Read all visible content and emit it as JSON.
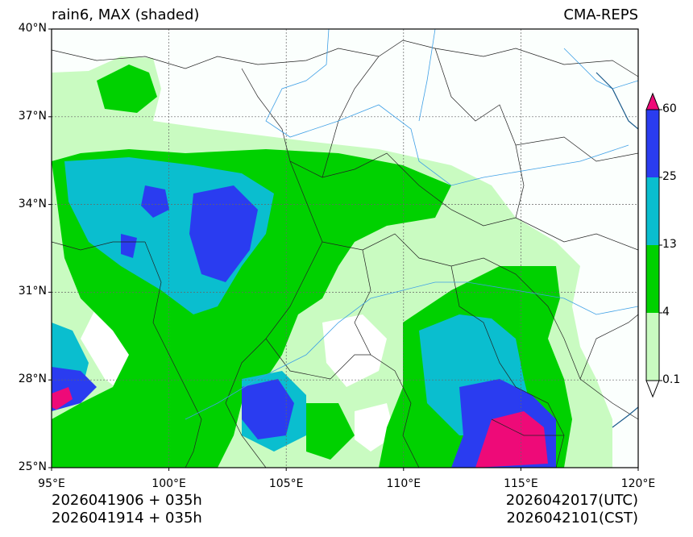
{
  "title_left": "rain6, MAX (shaded)",
  "title_right": "CMA-REPS",
  "footer": {
    "left_line1": "2026041906  +  035h",
    "left_line2": "2026041914  +  035h",
    "right_line1": "2026042017(UTC)",
    "right_line2": "2026042101(CST)"
  },
  "axes": {
    "lat_labels": [
      "40°N",
      "37°N",
      "34°N",
      "31°N",
      "28°N",
      "25°N"
    ],
    "lon_labels": [
      "95°E",
      "100°E",
      "105°E",
      "110°E",
      "115°E",
      "120°E"
    ],
    "lat_range": [
      25,
      40
    ],
    "lon_range": [
      95,
      120
    ]
  },
  "colorbar": {
    "levels": [
      "60",
      "25",
      "13",
      "4",
      "0.1"
    ],
    "colors": {
      "over": "#ee0a78",
      "c4": "#2a3cf0",
      "c3": "#0abecf",
      "c2": "#00d100",
      "c1": "#c9fbc1",
      "under": "#ffffff"
    }
  }
}
